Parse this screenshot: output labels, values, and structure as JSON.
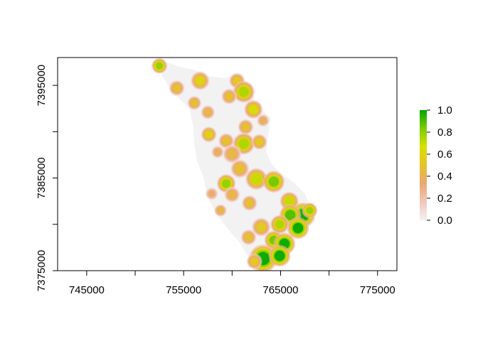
{
  "chart_data": {
    "type": "heatmap",
    "title": "",
    "xlabel": "",
    "ylabel": "",
    "xlim": [
      742000,
      777000
    ],
    "ylim": [
      7375000,
      7398000
    ],
    "x_ticks": [
      {
        "value": 745000,
        "label": "745000"
      },
      {
        "value": 755000,
        "label": "755000"
      },
      {
        "value": 765000,
        "label": "765000"
      },
      {
        "value": 775000,
        "label": "775000"
      }
    ],
    "y_ticks": [
      {
        "value": 7375000,
        "label": "7375000"
      },
      {
        "value": 7385000,
        "label": "7385000"
      },
      {
        "value": 7395000,
        "label": "7395000"
      }
    ],
    "legend": {
      "placement": "right",
      "range": [
        0,
        1
      ],
      "ticks": [
        {
          "value": 0.0,
          "label": "0.0"
        },
        {
          "value": 0.2,
          "label": "0.2"
        },
        {
          "value": 0.4,
          "label": "0.4"
        },
        {
          "value": 0.6,
          "label": "0.6"
        },
        {
          "value": 0.8,
          "label": "0.8"
        },
        {
          "value": 1.0,
          "label": "1.0"
        }
      ],
      "colors": [
        "#f2f2f2",
        "#f1c7bb",
        "#e8a872",
        "#e6c22a",
        "#d7e000",
        "#7ecb00",
        "#00a600"
      ]
    },
    "background_color": "#f2f2f2",
    "region_outline": [
      [
        752200,
        7397400
      ],
      [
        753200,
        7397500
      ],
      [
        754600,
        7397000
      ],
      [
        756000,
        7396700
      ],
      [
        757500,
        7396000
      ],
      [
        759000,
        7395800
      ],
      [
        760500,
        7396000
      ],
      [
        761500,
        7395400
      ],
      [
        762200,
        7394200
      ],
      [
        762300,
        7393000
      ],
      [
        763200,
        7392200
      ],
      [
        764000,
        7391500
      ],
      [
        763800,
        7390000
      ],
      [
        763500,
        7387800
      ],
      [
        764100,
        7386500
      ],
      [
        765200,
        7385300
      ],
      [
        766400,
        7384500
      ],
      [
        767500,
        7383300
      ],
      [
        768200,
        7381700
      ],
      [
        767400,
        7380500
      ],
      [
        766600,
        7379200
      ],
      [
        765600,
        7377700
      ],
      [
        764700,
        7376000
      ],
      [
        763800,
        7375100
      ],
      [
        762200,
        7375200
      ],
      [
        761500,
        7376700
      ],
      [
        760800,
        7378000
      ],
      [
        759800,
        7379200
      ],
      [
        758600,
        7380800
      ],
      [
        757800,
        7382200
      ],
      [
        757300,
        7383900
      ],
      [
        757000,
        7385200
      ],
      [
        756400,
        7386800
      ],
      [
        756100,
        7388700
      ],
      [
        756000,
        7390500
      ],
      [
        755600,
        7392500
      ],
      [
        754600,
        7393500
      ],
      [
        753500,
        7394800
      ],
      [
        752800,
        7396000
      ]
    ],
    "hotspots": [
      {
        "x": 752500,
        "y": 7397100,
        "r": 500,
        "v": 0.8
      },
      {
        "x": 754300,
        "y": 7394700,
        "r": 500,
        "v": 0.5
      },
      {
        "x": 756700,
        "y": 7395500,
        "r": 600,
        "v": 0.6
      },
      {
        "x": 760500,
        "y": 7395500,
        "r": 500,
        "v": 0.55
      },
      {
        "x": 761200,
        "y": 7394300,
        "r": 700,
        "v": 0.75
      },
      {
        "x": 759700,
        "y": 7393800,
        "r": 500,
        "v": 0.5
      },
      {
        "x": 756100,
        "y": 7393100,
        "r": 450,
        "v": 0.5
      },
      {
        "x": 757500,
        "y": 7392100,
        "r": 450,
        "v": 0.45
      },
      {
        "x": 762200,
        "y": 7392400,
        "r": 600,
        "v": 0.65
      },
      {
        "x": 761400,
        "y": 7390500,
        "r": 500,
        "v": 0.5
      },
      {
        "x": 763200,
        "y": 7391200,
        "r": 400,
        "v": 0.4
      },
      {
        "x": 757600,
        "y": 7389700,
        "r": 500,
        "v": 0.6
      },
      {
        "x": 759400,
        "y": 7389000,
        "r": 500,
        "v": 0.5
      },
      {
        "x": 761200,
        "y": 7388700,
        "r": 700,
        "v": 0.75
      },
      {
        "x": 762800,
        "y": 7388900,
        "r": 500,
        "v": 0.55
      },
      {
        "x": 760000,
        "y": 7387600,
        "r": 600,
        "v": 0.45
      },
      {
        "x": 758500,
        "y": 7387800,
        "r": 400,
        "v": 0.4
      },
      {
        "x": 760800,
        "y": 7386000,
        "r": 600,
        "v": 0.5
      },
      {
        "x": 762500,
        "y": 7384900,
        "r": 700,
        "v": 0.7
      },
      {
        "x": 764300,
        "y": 7384600,
        "r": 700,
        "v": 0.85
      },
      {
        "x": 759400,
        "y": 7384400,
        "r": 600,
        "v": 0.8
      },
      {
        "x": 760000,
        "y": 7383200,
        "r": 500,
        "v": 0.45
      },
      {
        "x": 761800,
        "y": 7382300,
        "r": 500,
        "v": 0.5
      },
      {
        "x": 765900,
        "y": 7382500,
        "r": 600,
        "v": 0.7
      },
      {
        "x": 767300,
        "y": 7381000,
        "r": 800,
        "v": 1.0
      },
      {
        "x": 766000,
        "y": 7381000,
        "r": 700,
        "v": 0.9
      },
      {
        "x": 768000,
        "y": 7381500,
        "r": 500,
        "v": 0.8
      },
      {
        "x": 766800,
        "y": 7379600,
        "r": 700,
        "v": 1.0
      },
      {
        "x": 764900,
        "y": 7380000,
        "r": 600,
        "v": 0.75
      },
      {
        "x": 763000,
        "y": 7379700,
        "r": 600,
        "v": 0.55
      },
      {
        "x": 761700,
        "y": 7378600,
        "r": 500,
        "v": 0.5
      },
      {
        "x": 764300,
        "y": 7378300,
        "r": 600,
        "v": 0.85
      },
      {
        "x": 765400,
        "y": 7377900,
        "r": 700,
        "v": 1.0
      },
      {
        "x": 763200,
        "y": 7376300,
        "r": 900,
        "v": 1.0
      },
      {
        "x": 764900,
        "y": 7376600,
        "r": 700,
        "v": 1.0
      },
      {
        "x": 762300,
        "y": 7376000,
        "r": 500,
        "v": 0.55
      },
      {
        "x": 758800,
        "y": 7381500,
        "r": 400,
        "v": 0.45
      },
      {
        "x": 757900,
        "y": 7383300,
        "r": 400,
        "v": 0.35
      }
    ]
  }
}
